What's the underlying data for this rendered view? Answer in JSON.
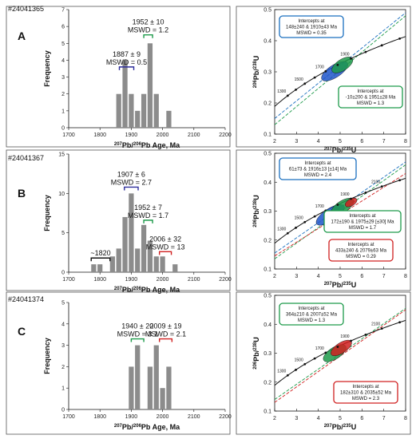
{
  "panels": [
    {
      "sample": "#24041365",
      "letter": "A",
      "histogram": {
        "type": "bar",
        "xlabel_pre": "207",
        "xlabel_mid": "Pb/",
        "xlabel_sup2": "206",
        "xlabel_post": "Pb Age, Ma",
        "ylabel": "Frequency",
        "xlim": [
          1700,
          2200
        ],
        "ylim": [
          0,
          7
        ],
        "yticks": [
          0,
          1,
          2,
          3,
          4,
          5,
          6,
          7
        ],
        "xticks": [
          1700,
          1800,
          1900,
          2000,
          2100,
          2200
        ],
        "bin_width": 20,
        "bars": [
          {
            "x": 1860,
            "v": 2
          },
          {
            "x": 1880,
            "v": 4
          },
          {
            "x": 1900,
            "v": 2
          },
          {
            "x": 1920,
            "v": 1
          },
          {
            "x": 1940,
            "v": 2
          },
          {
            "x": 1960,
            "v": 5
          },
          {
            "x": 1980,
            "v": 2
          },
          {
            "x": 2020,
            "v": 1
          }
        ],
        "brackets": [
          {
            "lines": [
              "1887 ± 9",
              "MSWD = 0.5"
            ],
            "x0": 1862,
            "x1": 1908,
            "y": 3.6,
            "color": "#2b2b9a"
          },
          {
            "lines": [
              "1952 ± 10",
              "MSWD = 1.2"
            ],
            "x0": 1940,
            "x1": 1968,
            "y": 5.5,
            "color": "#1d9a4a"
          }
        ]
      },
      "concordia": {
        "type": "scatter",
        "xlabel_sup": "207",
        "xlabel_main": "Pb/",
        "xlabel_sup2": "235",
        "xlabel_post": "U",
        "ylabel_sup": "206",
        "ylabel_main": "Pb/",
        "ylabel_sup2": "238",
        "ylabel_post": "U",
        "xlim": [
          2,
          8
        ],
        "ylim": [
          0.1,
          0.5
        ],
        "xticks": [
          2,
          3,
          4,
          5,
          6,
          7,
          8
        ],
        "yticks": [
          0.1,
          0.2,
          0.3,
          0.4,
          0.5
        ],
        "ticks_labeled": [
          "1300",
          "1500",
          "1700",
          "1900"
        ],
        "lines": [
          {
            "x": [
              2,
              8
            ],
            "y": [
              0.15,
              0.49
            ],
            "color": "#1a6fbf"
          },
          {
            "x": [
              2,
              8
            ],
            "y": [
              0.13,
              0.48
            ],
            "color": "#1d9a4a"
          }
        ],
        "ellipses": [
          {
            "cx": 4.75,
            "cy": 0.302,
            "rx": 0.7,
            "ry": 0.02,
            "angle": -33,
            "color": "#1f55c9"
          },
          {
            "cx": 5.1,
            "cy": 0.322,
            "rx": 0.55,
            "ry": 0.018,
            "angle": -33,
            "color": "#1d9a4a"
          }
        ],
        "boxes": [
          {
            "lines": [
              "Intercepts at",
              "148±240 & 1910±43 Ma",
              "MSWD = 0.35"
            ],
            "color": "#1a6fbf"
          },
          {
            "lines": [
              "Intercepts at",
              "-10±200 & 1951±28 Ma",
              "MSWD = 1.3"
            ],
            "color": "#1d9a4a"
          }
        ]
      }
    },
    {
      "sample": "#24041367",
      "letter": "B",
      "histogram": {
        "type": "bar",
        "xlabel_pre": "207",
        "xlabel_mid": "Pb/",
        "xlabel_sup2": "206",
        "xlabel_post": "Pb Age, Ma",
        "ylabel": "Frequency",
        "xlim": [
          1700,
          2200
        ],
        "ylim": [
          0,
          15
        ],
        "yticks": [
          0,
          5,
          10,
          15
        ],
        "xticks": [
          1700,
          1800,
          1900,
          2000,
          2100,
          2200
        ],
        "bin_width": 20,
        "bars": [
          {
            "x": 1780,
            "v": 1
          },
          {
            "x": 1800,
            "v": 1
          },
          {
            "x": 1840,
            "v": 2
          },
          {
            "x": 1860,
            "v": 3
          },
          {
            "x": 1880,
            "v": 7
          },
          {
            "x": 1900,
            "v": 10
          },
          {
            "x": 1920,
            "v": 3
          },
          {
            "x": 1940,
            "v": 6
          },
          {
            "x": 1960,
            "v": 4
          },
          {
            "x": 1980,
            "v": 2
          },
          {
            "x": 2000,
            "v": 2
          },
          {
            "x": 2040,
            "v": 1
          }
        ],
        "brackets": [
          {
            "lines": [
              "~1820"
            ],
            "x0": 1772,
            "x1": 1832,
            "y": 1.8,
            "color": "#111111"
          },
          {
            "lines": [
              "1907 ± 6",
              "MSWD = 2.7"
            ],
            "x0": 1878,
            "x1": 1922,
            "y": 10.8,
            "color": "#2b2b9a"
          },
          {
            "lines": [
              "1952 ± 7",
              "MSWD = 1.7"
            ],
            "x0": 1940,
            "x1": 1968,
            "y": 6.6,
            "color": "#1d9a4a"
          },
          {
            "lines": [
              "2006 ± 32",
              "MSWD = 13"
            ],
            "x0": 1990,
            "x1": 2028,
            "y": 2.6,
            "color": "#d02020"
          }
        ]
      },
      "concordia": {
        "type": "scatter",
        "xlabel_sup": "207",
        "xlabel_main": "Pb/",
        "xlabel_sup2": "235",
        "xlabel_post": "U",
        "ylabel_sup": "206",
        "ylabel_main": "Pb/",
        "ylabel_sup2": "238",
        "ylabel_post": "U",
        "xlim": [
          2,
          8
        ],
        "ylim": [
          0.1,
          0.5
        ],
        "xticks": [
          2,
          3,
          4,
          5,
          6,
          7,
          8
        ],
        "yticks": [
          0.1,
          0.2,
          0.3,
          0.4,
          0.5
        ],
        "ticks_labeled": [
          "1300",
          "1500",
          "1700",
          "1900",
          "2100"
        ],
        "lines": [
          {
            "x": [
              2,
              8
            ],
            "y": [
              0.155,
              0.47
            ],
            "color": "#1a6fbf"
          },
          {
            "x": [
              2,
              8
            ],
            "y": [
              0.135,
              0.46
            ],
            "color": "#1d9a4a"
          },
          {
            "x": [
              2,
              8
            ],
            "y": [
              0.145,
              0.43
            ],
            "color": "#d02020"
          }
        ],
        "ellipses": [
          {
            "cx": 4.55,
            "cy": 0.287,
            "rx": 0.75,
            "ry": 0.022,
            "angle": -33,
            "color": "#1f55c9"
          },
          {
            "cx": 5.1,
            "cy": 0.315,
            "rx": 0.6,
            "ry": 0.02,
            "angle": -33,
            "color": "#1d9a4a"
          },
          {
            "cx": 5.5,
            "cy": 0.33,
            "rx": 0.3,
            "ry": 0.012,
            "angle": -30,
            "color": "#d02020"
          }
        ],
        "boxes": [
          {
            "lines": [
              "Intercepts at",
              "61±73 & 1916±13   [±14]  Ma",
              "MSWD = 2.4"
            ],
            "color": "#1a6fbf"
          },
          {
            "lines": [
              "Intercepts at",
              "172±190 & 1975±29   [±30]  Ma",
              "MSWD = 1.7"
            ],
            "color": "#1d9a4a"
          },
          {
            "lines": [
              "Intercepts at",
              "433±240 & 2079±63 Ma",
              "MSWD = 0.29"
            ],
            "color": "#d02020"
          }
        ]
      }
    },
    {
      "sample": "#24041374",
      "letter": "C",
      "histogram": {
        "type": "bar",
        "xlabel_pre": "207",
        "xlabel_mid": "Pb/",
        "xlabel_sup2": "206",
        "xlabel_post": "Pb Age, Ma",
        "ylabel": "Frequency",
        "xlim": [
          1700,
          2200
        ],
        "ylim": [
          0,
          5
        ],
        "yticks": [
          0,
          1,
          2,
          3,
          4,
          5
        ],
        "xticks": [
          1700,
          1800,
          1900,
          2000,
          2100,
          2200
        ],
        "bin_width": 20,
        "bars": [
          {
            "x": 1900,
            "v": 2
          },
          {
            "x": 1920,
            "v": 3
          },
          {
            "x": 1960,
            "v": 2
          },
          {
            "x": 1980,
            "v": 3
          },
          {
            "x": 2000,
            "v": 1
          },
          {
            "x": 2020,
            "v": 2
          }
        ],
        "brackets": [
          {
            "lines": [
              "1940 ± 20",
              "MSWD = 3.1"
            ],
            "x0": 1900,
            "x1": 1940,
            "y": 3.3,
            "color": "#1d9a4a"
          },
          {
            "lines": [
              "2009 ± 19",
              "MSWD = 2.1"
            ],
            "x0": 1990,
            "x1": 2030,
            "y": 3.3,
            "color": "#d02020"
          }
        ]
      },
      "concordia": {
        "type": "scatter",
        "xlabel_sup": "207",
        "xlabel_main": "Pb/",
        "xlabel_sup2": "235",
        "xlabel_post": "U",
        "ylabel_sup": "206",
        "ylabel_main": "Pb/",
        "ylabel_sup2": "238",
        "ylabel_post": "U",
        "xlim": [
          2,
          8
        ],
        "ylim": [
          0.1,
          0.5
        ],
        "xticks": [
          2,
          3,
          4,
          5,
          6,
          7,
          8
        ],
        "yticks": [
          0.1,
          0.2,
          0.3,
          0.4,
          0.5
        ],
        "ticks_labeled": [
          "1300",
          "1500",
          "1700",
          "1900",
          "2100"
        ],
        "lines": [
          {
            "x": [
              2,
              8
            ],
            "y": [
              0.14,
              0.455
            ],
            "color": "#1d9a4a"
          },
          {
            "x": [
              2,
              8
            ],
            "y": [
              0.13,
              0.45
            ],
            "color": "#d02020"
          }
        ],
        "ellipses": [
          {
            "cx": 4.75,
            "cy": 0.3,
            "rx": 0.6,
            "ry": 0.02,
            "angle": -33,
            "color": "#1d9a4a"
          },
          {
            "cx": 5.05,
            "cy": 0.318,
            "rx": 0.55,
            "ry": 0.018,
            "angle": -33,
            "color": "#d02020"
          }
        ],
        "boxes": [
          {
            "lines": [
              "Intercepts at",
              "364±210 & 2007±52 Ma",
              "MSWD = 1.3"
            ],
            "color": "#1d9a4a"
          },
          {
            "lines": [
              "Intercepts at",
              "182±310 & 2035±52 Ma",
              "MSWD = 2.3"
            ],
            "color": "#d02020"
          }
        ]
      }
    }
  ],
  "chart_data": [
    {
      "type": "bar",
      "categories": [
        "1860",
        "1880",
        "1900",
        "1920",
        "1940",
        "1960",
        "1980",
        "2020"
      ],
      "values": [
        2,
        4,
        2,
        1,
        2,
        5,
        2,
        1
      ],
      "ylabel": "Frequency",
      "xlim": [
        1700,
        2200
      ],
      "ylim": [
        0,
        7
      ]
    },
    {
      "type": "scatter",
      "xlim": [
        2,
        8
      ],
      "ylim": [
        0.1,
        0.5
      ]
    },
    {
      "type": "bar",
      "categories": [
        "1780",
        "1800",
        "1840",
        "1860",
        "1880",
        "1900",
        "1920",
        "1940",
        "1960",
        "1980",
        "2000",
        "2040"
      ],
      "values": [
        1,
        1,
        2,
        3,
        7,
        10,
        3,
        6,
        4,
        2,
        2,
        1
      ],
      "ylabel": "Frequency",
      "xlim": [
        1700,
        2200
      ],
      "ylim": [
        0,
        15
      ]
    },
    {
      "type": "scatter",
      "xlim": [
        2,
        8
      ],
      "ylim": [
        0.1,
        0.5
      ]
    },
    {
      "type": "bar",
      "categories": [
        "1900",
        "1920",
        "1960",
        "1980",
        "2000",
        "2020"
      ],
      "values": [
        2,
        3,
        2,
        3,
        1,
        2
      ],
      "ylabel": "Frequency",
      "xlim": [
        1700,
        2200
      ],
      "ylim": [
        0,
        5
      ]
    },
    {
      "type": "scatter",
      "xlim": [
        2,
        8
      ],
      "ylim": [
        0.1,
        0.5
      ]
    }
  ]
}
